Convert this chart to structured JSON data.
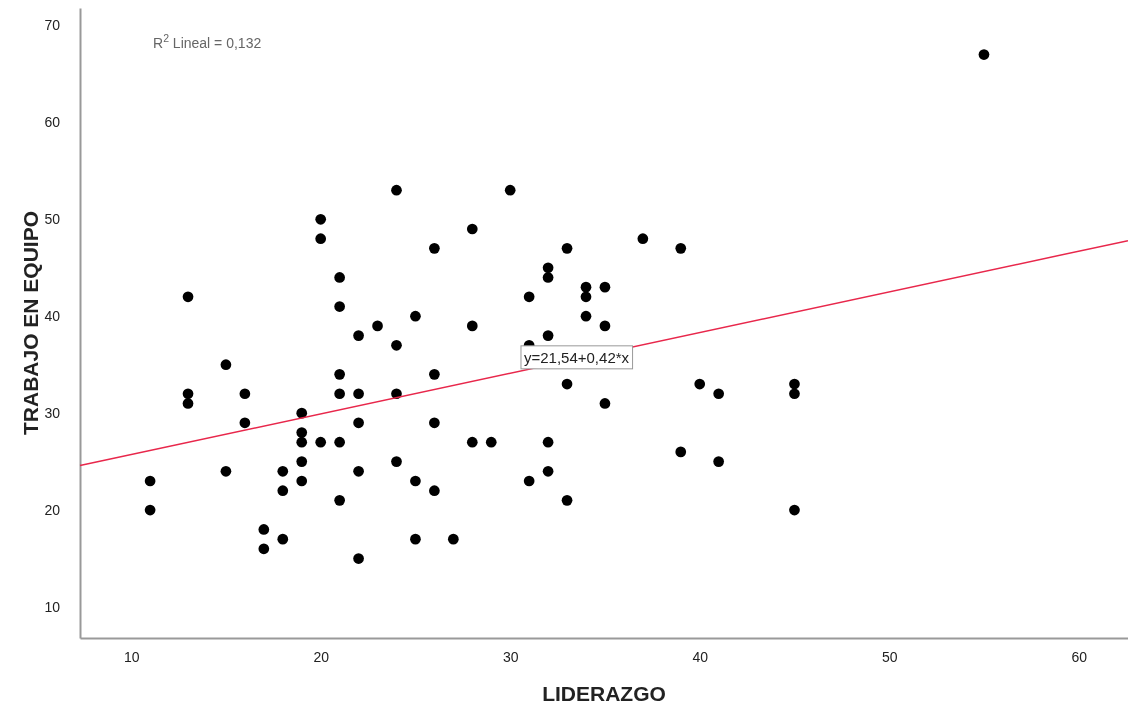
{
  "chart_data": {
    "type": "scatter",
    "xlabel": "LIDERAZGO",
    "ylabel": "TRABAJO EN EQUIPO",
    "xlim": [
      7.3,
      62.6
    ],
    "ylim": [
      6.8,
      71.8
    ],
    "xticks": [
      10,
      20,
      30,
      40,
      50,
      60
    ],
    "yticks": [
      10,
      20,
      30,
      40,
      50,
      60,
      70
    ],
    "grid": false,
    "marker": "circle",
    "annotations": [
      "R$^{2}$ Lineal = 0,132",
      {
        "text": "y=21,54+0,42*x",
        "x": 33.5,
        "y": 35.6
      }
    ],
    "series": [
      {
        "color": "#000000",
        "x": [
          11,
          11,
          13,
          13,
          13,
          15,
          15,
          16,
          16,
          17,
          17,
          18,
          18,
          18,
          19,
          19,
          19,
          19,
          19,
          20,
          20,
          20,
          21,
          21,
          21,
          21,
          21,
          21,
          22,
          22,
          22,
          22,
          22,
          23,
          24,
          24,
          24,
          24,
          25,
          25,
          25,
          26,
          26,
          26,
          26,
          27,
          28,
          28,
          28,
          29,
          30,
          31,
          31,
          31,
          32,
          32,
          32,
          32,
          32,
          33,
          33,
          33,
          34,
          34,
          34,
          35,
          35,
          35,
          37,
          39,
          39,
          40,
          41,
          41,
          45,
          45,
          45,
          55
        ],
        "values": [
          23,
          20,
          42,
          32,
          31,
          35,
          24,
          32,
          29,
          18,
          16,
          24,
          22,
          17,
          30,
          28,
          27,
          25,
          23,
          50,
          48,
          27,
          44,
          41,
          34,
          32,
          27,
          21,
          38,
          32,
          29,
          24,
          15,
          39,
          53,
          37,
          32,
          25,
          40,
          23,
          17,
          47,
          34,
          29,
          22,
          17,
          49,
          39,
          27,
          27,
          53,
          42,
          37,
          23,
          45,
          44,
          38,
          27,
          24,
          47,
          33,
          21,
          43,
          42,
          40,
          43,
          39,
          31,
          48,
          47,
          26,
          33,
          32,
          25,
          33,
          32,
          20,
          67
        ]
      },
      {
        "type": "line",
        "marker": "none",
        "color": "#e8274b",
        "x": [
          7.3,
          62.6
        ],
        "values": [
          24.6,
          47.8
        ]
      }
    ]
  }
}
